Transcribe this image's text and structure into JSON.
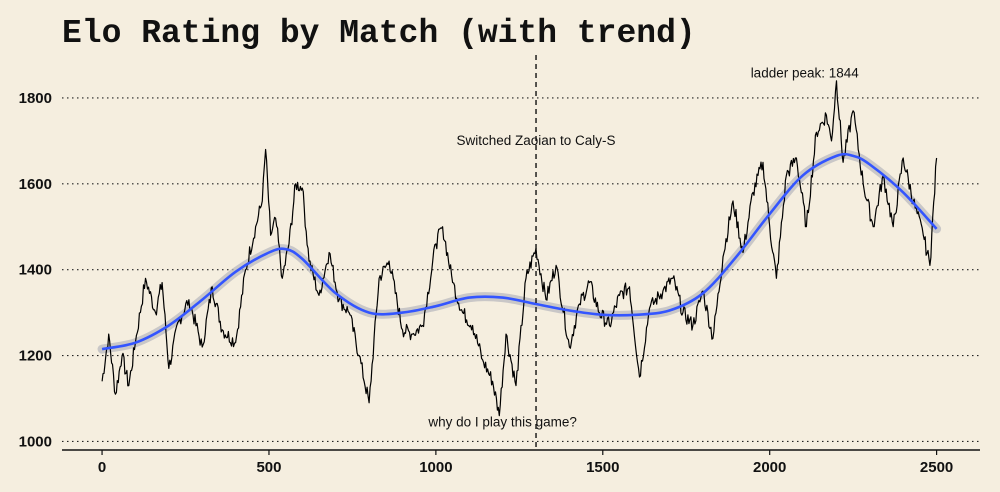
{
  "chart_data": {
    "type": "line",
    "title": "Elo Rating by Match (with trend)",
    "xlabel": "",
    "ylabel": "",
    "xlim": [
      -120,
      2630
    ],
    "ylim": [
      980,
      1900
    ],
    "x_ticks": [
      0,
      500,
      1000,
      1500,
      2000,
      2500
    ],
    "y_ticks": [
      1000,
      1200,
      1400,
      1600,
      1800
    ],
    "grid": "horizontal dotted",
    "legend": "none",
    "colors": {
      "rating_line": "#000000",
      "trend_line": "#3355ff",
      "trend_band": "#b9b9bf",
      "background": "#f5eedf"
    },
    "series": [
      {
        "role": "rating",
        "x": [
          0,
          20,
          40,
          60,
          80,
          100,
          130,
          160,
          180,
          200,
          230,
          260,
          300,
          330,
          360,
          400,
          430,
          460,
          480,
          490,
          505,
          520,
          540,
          560,
          580,
          600,
          620,
          650,
          680,
          710,
          740,
          770,
          800,
          830,
          860,
          900,
          930,
          960,
          1000,
          1020,
          1050,
          1080,
          1110,
          1140,
          1170,
          1190,
          1210,
          1240,
          1270,
          1300,
          1330,
          1360,
          1400,
          1430,
          1460,
          1490,
          1520,
          1550,
          1580,
          1610,
          1640,
          1680,
          1710,
          1740,
          1770,
          1800,
          1830,
          1860,
          1890,
          1920,
          1950,
          1980,
          2000,
          2020,
          2050,
          2080,
          2110,
          2140,
          2170,
          2185,
          2200,
          2220,
          2250,
          2280,
          2310,
          2340,
          2370,
          2400,
          2430,
          2460,
          2480,
          2500
        ],
        "y": [
          1140,
          1250,
          1110,
          1200,
          1130,
          1230,
          1380,
          1300,
          1370,
          1170,
          1280,
          1330,
          1220,
          1360,
          1260,
          1230,
          1400,
          1500,
          1560,
          1680,
          1480,
          1520,
          1380,
          1460,
          1600,
          1590,
          1420,
          1340,
          1440,
          1330,
          1300,
          1200,
          1090,
          1380,
          1420,
          1260,
          1250,
          1270,
          1460,
          1500,
          1370,
          1300,
          1270,
          1190,
          1140,
          1060,
          1250,
          1130,
          1380,
          1450,
          1330,
          1410,
          1220,
          1320,
          1370,
          1300,
          1270,
          1340,
          1360,
          1150,
          1310,
          1350,
          1380,
          1300,
          1270,
          1350,
          1240,
          1430,
          1560,
          1440,
          1580,
          1650,
          1500,
          1380,
          1620,
          1660,
          1500,
          1720,
          1760,
          1700,
          1840,
          1650,
          1770,
          1600,
          1500,
          1620,
          1500,
          1660,
          1560,
          1480,
          1410,
          1660
        ]
      },
      {
        "role": "trend",
        "x": [
          0,
          100,
          200,
          300,
          400,
          500,
          550,
          600,
          700,
          800,
          900,
          1000,
          1100,
          1200,
          1300,
          1400,
          1500,
          1600,
          1700,
          1800,
          1900,
          2000,
          2100,
          2200,
          2250,
          2300,
          2400,
          2500
        ],
        "y": [
          1215,
          1230,
          1270,
          1330,
          1395,
          1440,
          1448,
          1425,
          1345,
          1300,
          1300,
          1315,
          1335,
          1335,
          1320,
          1305,
          1295,
          1295,
          1305,
          1345,
          1430,
          1530,
          1620,
          1665,
          1665,
          1645,
          1580,
          1495
        ]
      }
    ],
    "vline": {
      "x": 1300
    },
    "annotations": [
      {
        "text": "ladder peak: 1844",
        "x": 2105,
        "y": 1848
      },
      {
        "text": "Switched Zaoian to Caly-S",
        "x": 1300,
        "y": 1690
      },
      {
        "text": "why do I play this game?",
        "x": 1200,
        "y": 1035
      }
    ]
  }
}
